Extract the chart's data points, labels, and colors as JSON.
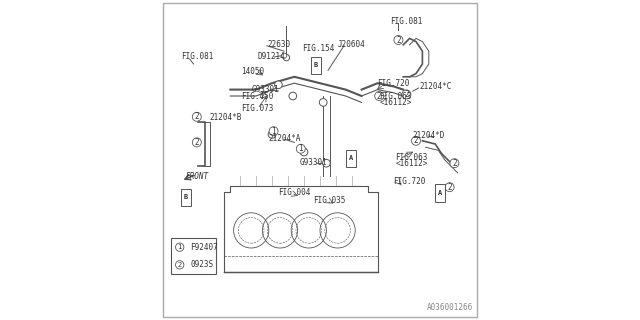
{
  "title": "",
  "background_color": "#ffffff",
  "border_color": "#cccccc",
  "line_color": "#555555",
  "text_color": "#333333",
  "diagram_number": "A036001266",
  "diagram_number_color": "#888888",
  "legend": [
    {
      "symbol": "1",
      "code": "F92407"
    },
    {
      "symbol": "2",
      "code": "0923S"
    }
  ]
}
